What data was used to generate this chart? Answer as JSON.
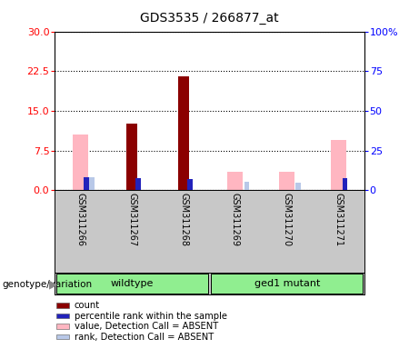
{
  "title": "GDS3535 / 266877_at",
  "samples": [
    "GSM311266",
    "GSM311267",
    "GSM311268",
    "GSM311269",
    "GSM311270",
    "GSM311271"
  ],
  "count_values": [
    null,
    12.5,
    21.5,
    null,
    null,
    null
  ],
  "rank_values": [
    8.0,
    7.5,
    7.2,
    null,
    null,
    7.5
  ],
  "absent_value": [
    10.5,
    null,
    null,
    3.5,
    3.5,
    9.5
  ],
  "absent_rank": [
    8.0,
    null,
    null,
    5.5,
    5.0,
    null
  ],
  "ylim_left": [
    0,
    30
  ],
  "ylim_right": [
    0,
    100
  ],
  "yticks_left": [
    0,
    7.5,
    15,
    22.5,
    30
  ],
  "yticks_right": [
    0,
    25,
    50,
    75,
    100
  ],
  "count_color": "#8B0000",
  "rank_color": "#2222BB",
  "absent_value_color": "#FFB6C1",
  "absent_rank_color": "#B8C8E8",
  "sample_bg": "#C8C8C8",
  "group_color": "#90EE90",
  "legend_items": [
    "count",
    "percentile rank within the sample",
    "value, Detection Call = ABSENT",
    "rank, Detection Call = ABSENT"
  ],
  "legend_colors": [
    "#8B0000",
    "#2222BB",
    "#FFB6C1",
    "#B8C8E8"
  ],
  "group_left_label": "wildtype",
  "group_right_label": "ged1 mutant",
  "genotype_label": "genotype/variation"
}
